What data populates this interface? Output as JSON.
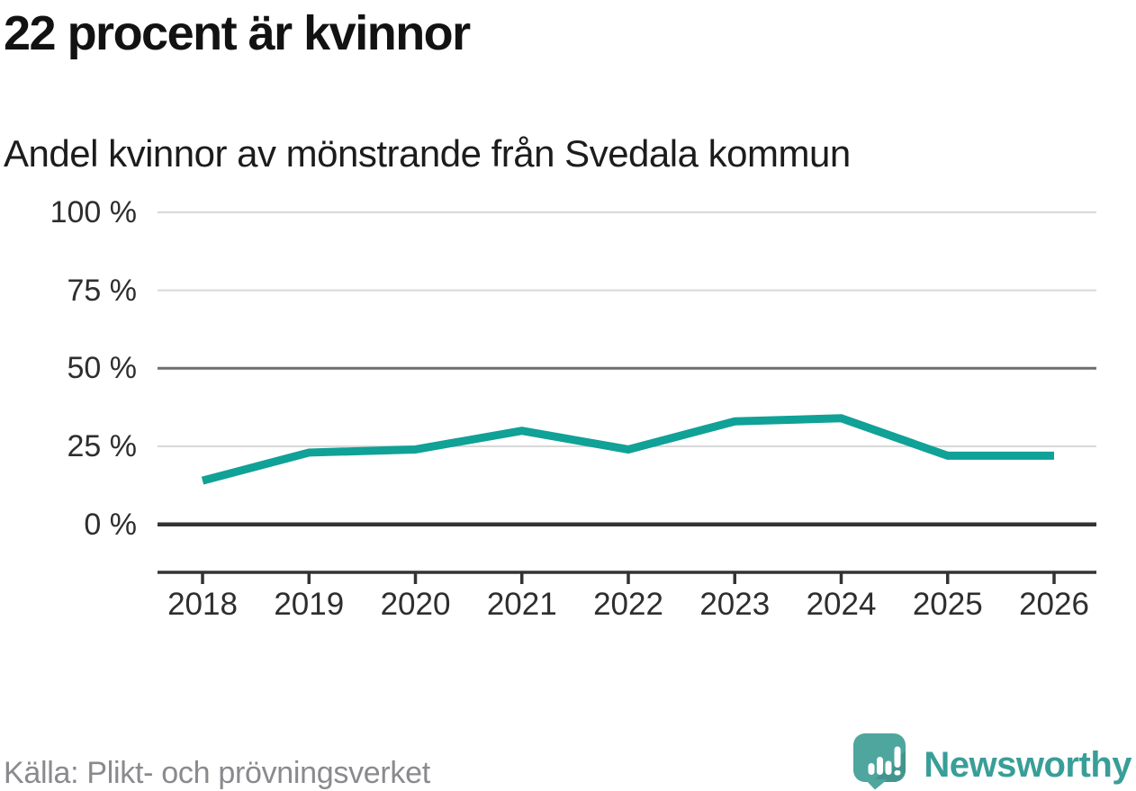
{
  "header": {
    "title": "22 procent är kvinnor",
    "subtitle": "Andel kvinnor av mönstrande från Svedala kommun"
  },
  "footer": {
    "source": "Källa: Plikt- och prövningsverket",
    "brand_name": "Newsworthy",
    "brand_icon": "newsworthy-speech-bubble-bar-chart-icon"
  },
  "chart_data": {
    "type": "line",
    "title": "22 procent är kvinnor",
    "subtitle": "Andel kvinnor av mönstrande från Svedala kommun",
    "x": [
      2018,
      2019,
      2020,
      2021,
      2022,
      2023,
      2024,
      2025,
      2026
    ],
    "series": [
      {
        "name": "Andel kvinnor av mönstrande från Svedala kommun (%)",
        "values": [
          14,
          23,
          24,
          30,
          24,
          33,
          34,
          22,
          22
        ]
      }
    ],
    "xlabel": "",
    "ylabel": "",
    "ylim": [
      0,
      100
    ],
    "yticks": [
      {
        "value": 100,
        "label": "100 %"
      },
      {
        "value": 75,
        "label": "75 %"
      },
      {
        "value": 50,
        "label": "50 %"
      },
      {
        "value": 25,
        "label": "25 %"
      },
      {
        "value": 0,
        "label": "0 %"
      }
    ],
    "grid": "horizontal",
    "legend": "none",
    "line_color": "#10a197",
    "grid_color_light": "#d8d8d8",
    "grid_color_mid": "#6e6e6e",
    "axis_color": "#333333",
    "brand_color": "#399e98"
  }
}
